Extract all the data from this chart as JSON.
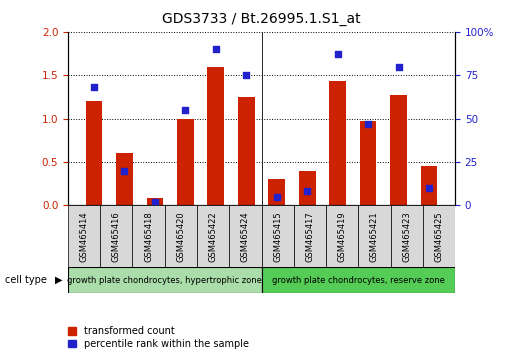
{
  "title": "GDS3733 / Bt.26995.1.S1_at",
  "categories": [
    "GSM465414",
    "GSM465416",
    "GSM465418",
    "GSM465420",
    "GSM465422",
    "GSM465424",
    "GSM465415",
    "GSM465417",
    "GSM465419",
    "GSM465421",
    "GSM465423",
    "GSM465425"
  ],
  "red_values": [
    1.2,
    0.6,
    0.09,
    1.0,
    1.6,
    1.25,
    0.3,
    0.4,
    1.43,
    0.97,
    1.27,
    0.45
  ],
  "blue_values": [
    68,
    20,
    2,
    55,
    90,
    75,
    5,
    8,
    87,
    47,
    80,
    10
  ],
  "group1_label": "growth plate chondrocytes, hypertrophic zone",
  "group2_label": "growth plate chondrocytes, reserve zone",
  "group1_count": 6,
  "group2_count": 6,
  "ylim_left": [
    0,
    2
  ],
  "ylim_right": [
    0,
    100
  ],
  "yticks_left": [
    0,
    0.5,
    1.0,
    1.5,
    2.0
  ],
  "yticks_right": [
    0,
    25,
    50,
    75,
    100
  ],
  "cell_type_label": "cell type",
  "legend1": "transformed count",
  "legend2": "percentile rank within the sample",
  "red_color": "#cc2200",
  "blue_color": "#2222cc",
  "bar_width": 0.55,
  "group1_bg": "#aaddaa",
  "group2_bg": "#55cc55",
  "tick_label_bg": "#d8d8d8",
  "title_fontsize": 10,
  "axis_fontsize": 7.5,
  "label_fontsize": 6,
  "legend_fontsize": 7
}
